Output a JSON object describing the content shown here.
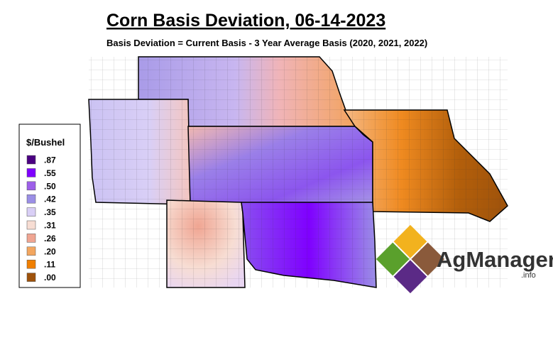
{
  "header": {
    "title": "Corn Basis Deviation, 06-14-2023",
    "subtitle": "Basis Deviation = Current Basis - 3 Year Average Basis (2020, 2021, 2022)"
  },
  "legend": {
    "title": "$/Bushel",
    "items": [
      {
        "label": ".87",
        "color": "#4b0082"
      },
      {
        "label": ".55",
        "color": "#7f00ff"
      },
      {
        "label": ".50",
        "color": "#9d5fe9"
      },
      {
        "label": ".42",
        "color": "#9b8fe6"
      },
      {
        "label": ".35",
        "color": "#d9cff6"
      },
      {
        "label": ".31",
        "color": "#f7ddd3"
      },
      {
        "label": ".26",
        "color": "#f0a592"
      },
      {
        "label": ".20",
        "color": "#f3a65f"
      },
      {
        "label": ".11",
        "color": "#f07f00"
      },
      {
        "label": ".00",
        "color": "#9e520b"
      }
    ]
  },
  "logo": {
    "name": "AgManager",
    "suffix": ".info"
  }
}
